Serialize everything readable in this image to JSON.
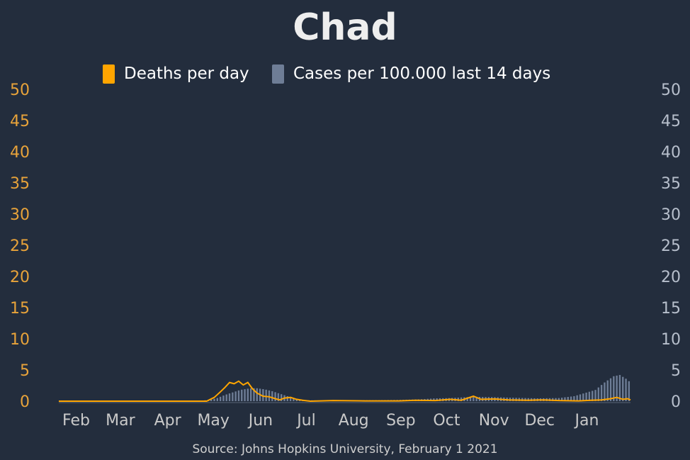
{
  "title": "Chad",
  "source": "Source: Johns Hopkins University, February 1 2021",
  "colors": {
    "background": "#232d3d",
    "deaths": "#ffa500",
    "cases": "#6e7d96",
    "title": "#eeeeee",
    "left_axis": "#e8a33a",
    "right_axis": "#b7bfcc",
    "month_labels": "#c9c9c9",
    "source": "#cfcfcf"
  },
  "legend": {
    "deaths_label": "Deaths per day",
    "cases_label": "Cases per 100.000 last 14 days"
  },
  "chart_data": {
    "type": "bar+line",
    "title": "Chad",
    "x_start": "2020-01-22",
    "x_end": "2021-01-31",
    "month_ticks": [
      {
        "label": "Feb",
        "date": "2020-02-01"
      },
      {
        "label": "Mar",
        "date": "2020-03-01"
      },
      {
        "label": "Apr",
        "date": "2020-04-01"
      },
      {
        "label": "May",
        "date": "2020-05-01"
      },
      {
        "label": "Jun",
        "date": "2020-06-01"
      },
      {
        "label": "Jul",
        "date": "2020-07-01"
      },
      {
        "label": "Aug",
        "date": "2020-08-01"
      },
      {
        "label": "Sep",
        "date": "2020-09-01"
      },
      {
        "label": "Oct",
        "date": "2020-10-01"
      },
      {
        "label": "Nov",
        "date": "2020-11-01"
      },
      {
        "label": "Dec",
        "date": "2020-12-01"
      },
      {
        "label": "Jan",
        "date": "2021-01-01"
      }
    ],
    "y_left": {
      "min": 0,
      "max": 50,
      "ticks": [
        "0",
        "5",
        "10",
        "15",
        "20",
        "25",
        "30",
        "35",
        "40",
        "45",
        "50"
      ]
    },
    "y_right": {
      "min": 0,
      "max": 50,
      "ticks": [
        "0",
        "5",
        "10",
        "15",
        "20",
        "25",
        "30",
        "35",
        "40",
        "45",
        "50"
      ]
    },
    "grid": false,
    "legend_position": "top-center",
    "series": [
      {
        "name": "Cases per 100.000 last 14 days",
        "kind": "bar",
        "axis": "right",
        "points": [
          [
            "2020-01-22",
            0
          ],
          [
            "2020-04-20",
            0
          ],
          [
            "2020-04-30",
            0.2
          ],
          [
            "2020-05-05",
            0.5
          ],
          [
            "2020-05-10",
            1.0
          ],
          [
            "2020-05-15",
            1.4
          ],
          [
            "2020-05-20",
            1.8
          ],
          [
            "2020-05-25",
            2.0
          ],
          [
            "2020-05-30",
            2.1
          ],
          [
            "2020-06-05",
            1.9
          ],
          [
            "2020-06-10",
            1.6
          ],
          [
            "2020-06-15",
            1.2
          ],
          [
            "2020-06-20",
            0.8
          ],
          [
            "2020-06-25",
            0.4
          ],
          [
            "2020-07-01",
            0.15
          ],
          [
            "2020-07-15",
            0.1
          ],
          [
            "2020-08-01",
            0.15
          ],
          [
            "2020-08-15",
            0.15
          ],
          [
            "2020-09-01",
            0.2
          ],
          [
            "2020-09-15",
            0.3
          ],
          [
            "2020-09-25",
            0.45
          ],
          [
            "2020-10-05",
            0.5
          ],
          [
            "2020-10-20",
            0.7
          ],
          [
            "2020-11-01",
            0.65
          ],
          [
            "2020-11-15",
            0.55
          ],
          [
            "2020-12-01",
            0.45
          ],
          [
            "2020-12-15",
            0.5
          ],
          [
            "2020-12-25",
            0.8
          ],
          [
            "2021-01-01",
            1.3
          ],
          [
            "2021-01-08",
            1.8
          ],
          [
            "2021-01-14",
            3.0
          ],
          [
            "2021-01-20",
            4.0
          ],
          [
            "2021-01-24",
            4.2
          ],
          [
            "2021-01-28",
            3.6
          ],
          [
            "2021-01-31",
            3.0
          ]
        ]
      },
      {
        "name": "Deaths per day",
        "kind": "line",
        "axis": "left",
        "points": [
          [
            "2020-01-22",
            0
          ],
          [
            "2020-04-28",
            0
          ],
          [
            "2020-05-03",
            0.6
          ],
          [
            "2020-05-07",
            1.5
          ],
          [
            "2020-05-10",
            2.2
          ],
          [
            "2020-05-13",
            3.0
          ],
          [
            "2020-05-16",
            2.8
          ],
          [
            "2020-05-19",
            3.2
          ],
          [
            "2020-05-22",
            2.6
          ],
          [
            "2020-05-25",
            3.0
          ],
          [
            "2020-05-28",
            2.0
          ],
          [
            "2020-05-31",
            1.3
          ],
          [
            "2020-06-04",
            0.8
          ],
          [
            "2020-06-08",
            0.7
          ],
          [
            "2020-06-12",
            0.4
          ],
          [
            "2020-06-15",
            0.2
          ],
          [
            "2020-06-18",
            0.5
          ],
          [
            "2020-06-22",
            0.6
          ],
          [
            "2020-06-26",
            0.3
          ],
          [
            "2020-06-30",
            0.15
          ],
          [
            "2020-07-05",
            0
          ],
          [
            "2020-07-20",
            0.1
          ],
          [
            "2020-08-10",
            0.05
          ],
          [
            "2020-09-01",
            0.05
          ],
          [
            "2020-09-12",
            0.15
          ],
          [
            "2020-09-25",
            0.1
          ],
          [
            "2020-10-05",
            0.3
          ],
          [
            "2020-10-12",
            0.15
          ],
          [
            "2020-10-20",
            0.8
          ],
          [
            "2020-10-25",
            0.3
          ],
          [
            "2020-11-03",
            0.35
          ],
          [
            "2020-11-12",
            0.2
          ],
          [
            "2020-11-25",
            0.15
          ],
          [
            "2020-12-05",
            0.2
          ],
          [
            "2020-12-15",
            0.1
          ],
          [
            "2020-12-28",
            0.05
          ],
          [
            "2021-01-05",
            0.15
          ],
          [
            "2021-01-12",
            0.2
          ],
          [
            "2021-01-18",
            0.4
          ],
          [
            "2021-01-22",
            0.6
          ],
          [
            "2021-01-26",
            0.3
          ],
          [
            "2021-01-29",
            0.4
          ],
          [
            "2021-01-31",
            0.2
          ]
        ]
      }
    ]
  }
}
